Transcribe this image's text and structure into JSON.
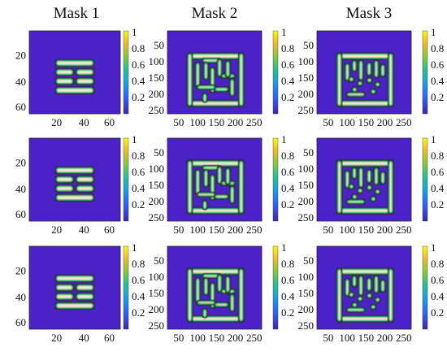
{
  "titles": [
    "Mask 1",
    "Mask 2",
    "Mask 3"
  ],
  "colors": {
    "background": "#4b22c8",
    "bright": "#f5e6d3",
    "rim": "#3ac37a",
    "dark": "#2b2b2b",
    "yellow": "#f6e52b"
  },
  "colorbar": {
    "ticks": [
      "1",
      "0.8",
      "0.6",
      "0.4",
      "0.2"
    ]
  },
  "mask1_axes": {
    "y_ticks": [
      "20",
      "40",
      "60"
    ],
    "x_ticks": [
      "20",
      "40",
      "60"
    ]
  },
  "mask23_axes": {
    "y_ticks": [
      "50",
      "100",
      "150",
      "200",
      "250"
    ],
    "x_ticks": [
      "50",
      "100",
      "150",
      "200",
      "250"
    ]
  }
}
